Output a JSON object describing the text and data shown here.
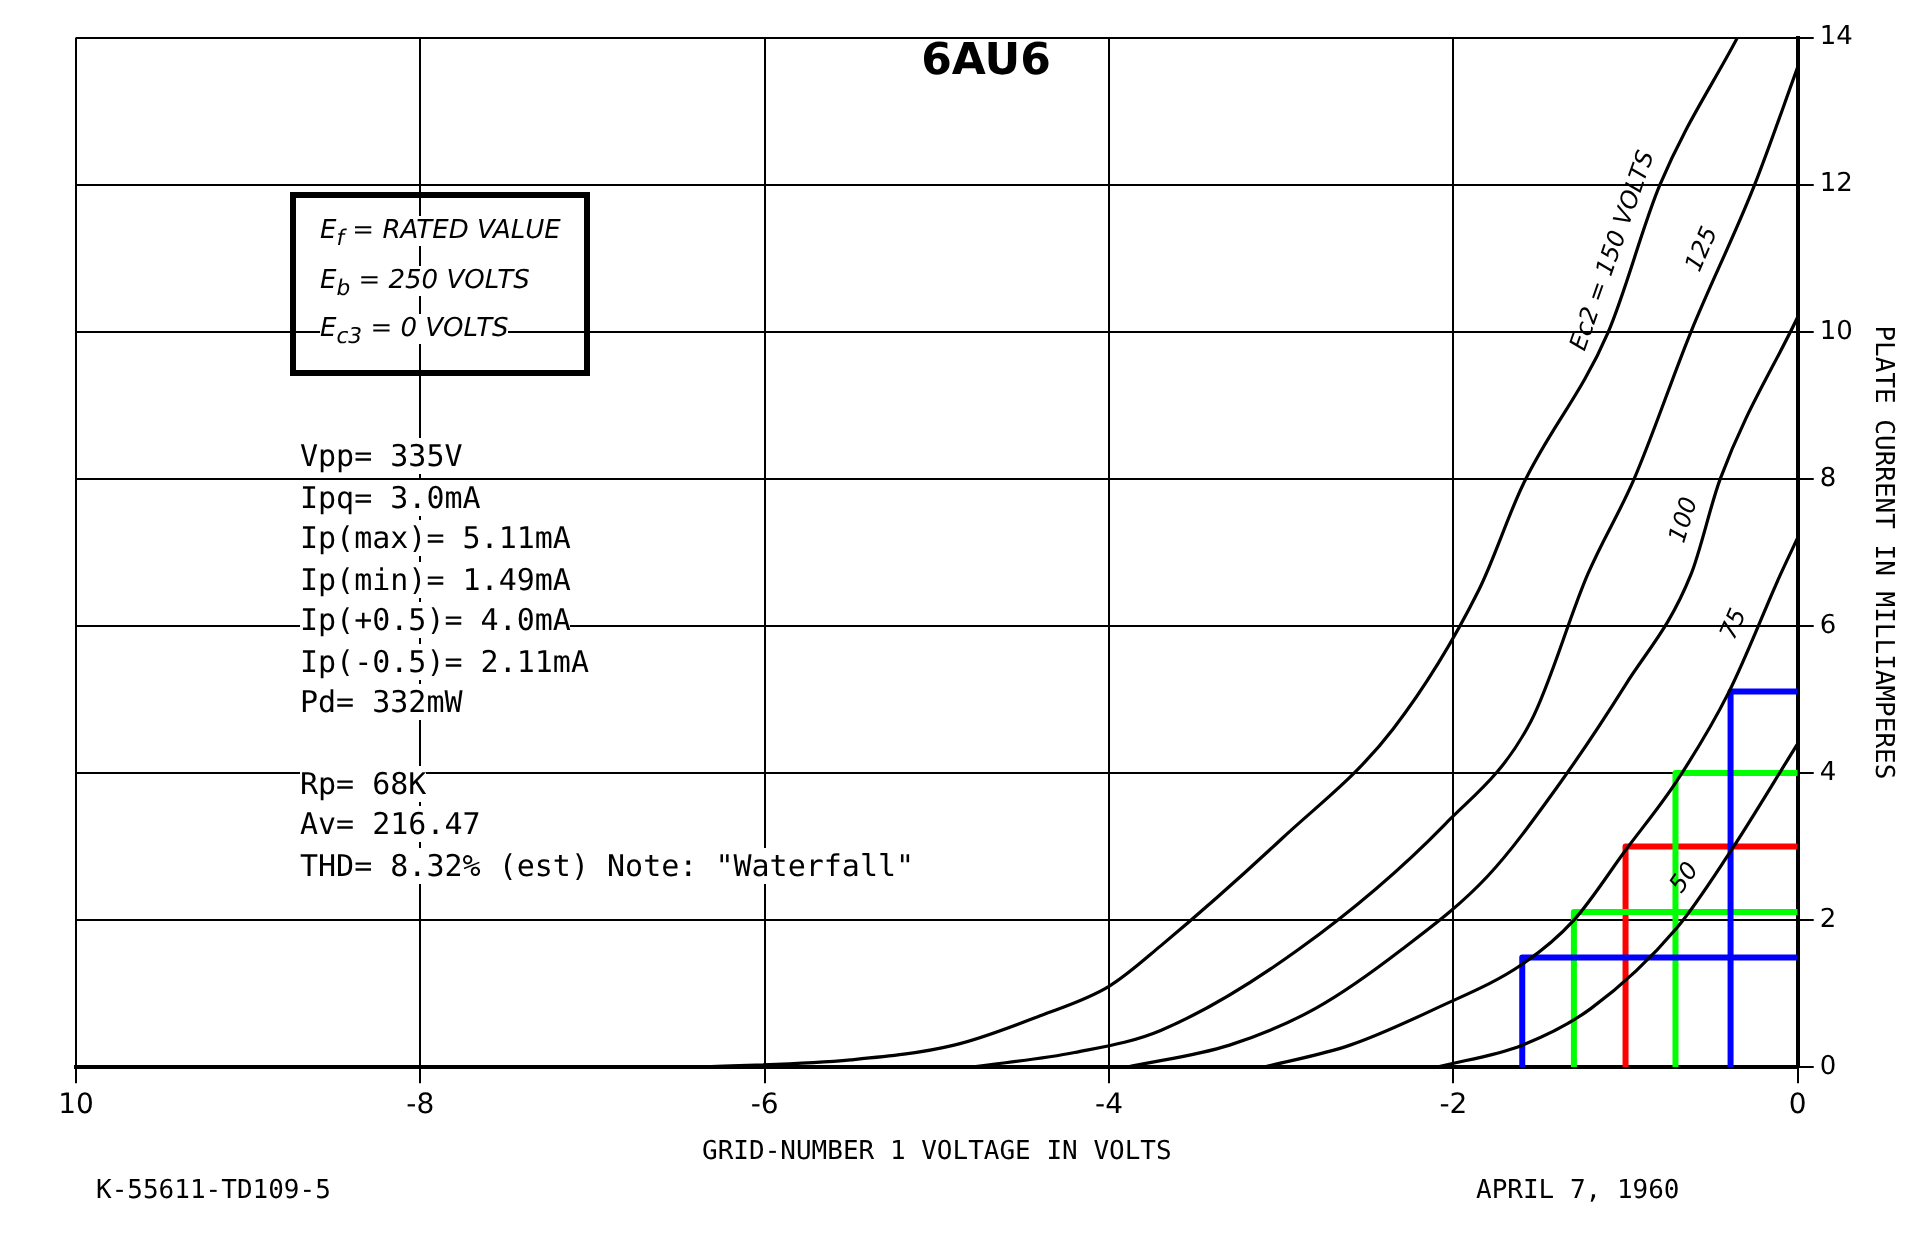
{
  "chart_data": {
    "type": "line",
    "title": "6AU6",
    "xlabel": "GRID-NUMBER 1 VOLTAGE IN VOLTS",
    "ylabel": "PLATE CURRENT IN MILLIAMPERES",
    "xlim": [
      -10,
      0
    ],
    "xticks": [
      {
        "value": -10,
        "label": "10"
      },
      -8,
      -6,
      -4,
      -2,
      0
    ],
    "ylim": [
      0,
      14
    ],
    "yticks": [
      0,
      2,
      4,
      6,
      8,
      10,
      12,
      14
    ],
    "grid": true,
    "legend": false,
    "marker": "none",
    "line_style": "solid",
    "series": [
      {
        "name": "Ec2 = 150 VOLTS",
        "color": "#000000",
        "x": [
          -6.4,
          -5.5,
          -4.9,
          -4.4,
          -4.0,
          -3.7,
          -3.0,
          -2.35,
          -1.85,
          -1.6,
          -1.1,
          -0.8,
          -0.35
        ],
        "values": [
          0,
          0.1,
          0.3,
          0.7,
          1.1,
          1.65,
          3.1,
          4.6,
          6.5,
          7.9,
          10,
          12,
          14
        ]
      },
      {
        "name": "125",
        "color": "#000000",
        "x": [
          -4.8,
          -4.2,
          -3.7,
          -2.9,
          -2.05,
          -1.55,
          -1.22,
          -0.95,
          -0.62,
          -0.25,
          0
        ],
        "values": [
          0,
          0.2,
          0.5,
          1.6,
          3.3,
          4.7,
          6.7,
          8,
          10,
          12,
          13.6
        ]
      },
      {
        "name": "100",
        "color": "#000000",
        "x": [
          -3.9,
          -3.3,
          -2.8,
          -2.3,
          -1.8,
          -1.4,
          -1.0,
          -0.62,
          -0.45,
          0
        ],
        "values": [
          0,
          0.3,
          0.8,
          1.6,
          2.6,
          3.8,
          5.2,
          6.7,
          8,
          10.2
        ]
      },
      {
        "name": "75",
        "color": "#000000",
        "x": [
          -3.1,
          -2.6,
          -2.1,
          -1.6,
          -1.3,
          -1.0,
          -0.7,
          -0.4,
          -0.1,
          0
        ],
        "values": [
          0,
          0.3,
          0.8,
          1.4,
          2.0,
          2.95,
          3.9,
          5.1,
          6.7,
          7.2
        ]
      },
      {
        "name": "50",
        "color": "#000000",
        "x": [
          -2.1,
          -1.6,
          -1.2,
          -0.7,
          -0.4,
          0
        ],
        "values": [
          0,
          0.3,
          0.8,
          1.9,
          2.9,
          4.4
        ]
      },
      {
        "color": "#0000ff",
        "x": [
          -0.39,
          -0.39,
          0
        ],
        "values": [
          0,
          5.11,
          5.11
        ]
      },
      {
        "color": "#0000ff",
        "x": [
          -1.6,
          -1.6,
          0
        ],
        "values": [
          0,
          1.49,
          1.49
        ]
      },
      {
        "color": "#00ff00",
        "x": [
          -0.71,
          -0.71,
          0
        ],
        "values": [
          0,
          4.0,
          4.0
        ]
      },
      {
        "color": "#00ff00",
        "x": [
          -1.3,
          -1.3,
          0
        ],
        "values": [
          0,
          2.11,
          2.11
        ]
      },
      {
        "color": "#ff0000",
        "x": [
          -1.0,
          -1.0,
          0
        ],
        "values": [
          0,
          3.0,
          3.0
        ]
      }
    ],
    "annotations": [
      "E$_{f}$ = RATED VALUE",
      "E$_{b}$ = 250 VOLTS",
      "E$_{c3}$ = 0 VOLTS",
      "Vpp= 335V",
      "Ipq= 3.0mA",
      "Ip(max)= 5.11mA",
      "Ip(min)= 1.49mA",
      "Ip(+0.5)= 4.0mA",
      "Ip(-0.5)= 2.11mA",
      "Pd= 332mW",
      "Rp= 68K",
      "Av= 216.47",
      "THD= 8.32% (est) Note: \"Waterfall\"",
      "K-55611-TD109-5",
      "APRIL 7, 1960"
    ]
  }
}
